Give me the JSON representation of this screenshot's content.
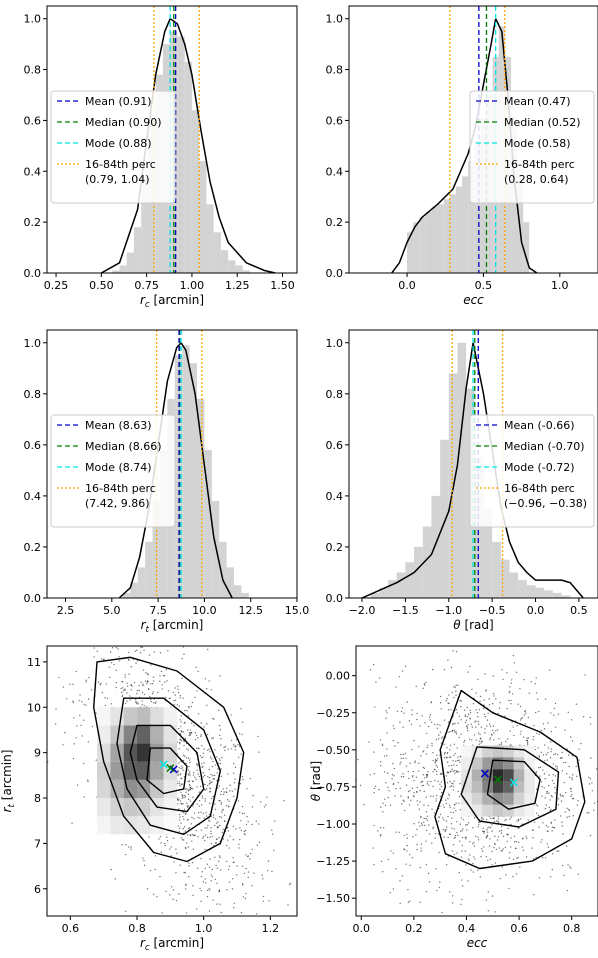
{
  "colors": {
    "mean": "#0000cc",
    "median": "#008000",
    "mode": "#00e5e5",
    "perc": "#ffa500",
    "hist": "#d3d3d3",
    "curve": "#000000"
  },
  "chart_data": [
    {
      "id": "rc_hist",
      "type": "bar",
      "xlabel": "r_c [arcmin]",
      "xlim": [
        0.2,
        1.58
      ],
      "ylim": [
        0,
        1.05
      ],
      "xticks": [
        "0.25",
        "0.50",
        "0.75",
        "1.00",
        "1.25",
        "1.50"
      ],
      "yticks": [
        "0.0",
        "0.2",
        "0.4",
        "0.6",
        "0.8",
        "1.0"
      ],
      "legend": "left",
      "lines": {
        "mean": 0.91,
        "median": 0.9,
        "mode": 0.88,
        "p16": 0.79,
        "p84": 1.04
      },
      "legend_labels": [
        "Mean (0.91)",
        "Median (0.90)",
        "Mode (0.88)",
        "16-84th perc",
        "(0.79, 1.04)"
      ],
      "hist": {
        "x0": 0.56,
        "dx": 0.04,
        "values": [
          0.01,
          0.03,
          0.08,
          0.18,
          0.38,
          0.6,
          0.78,
          0.9,
          0.95,
          0.93,
          0.83,
          0.64,
          0.44,
          0.27,
          0.16,
          0.09,
          0.05,
          0.03,
          0.01
        ]
      },
      "curve": {
        "x": [
          0.5,
          0.6,
          0.7,
          0.75,
          0.8,
          0.85,
          0.88,
          0.92,
          0.96,
          1.0,
          1.05,
          1.1,
          1.15,
          1.2,
          1.3,
          1.4,
          1.46
        ],
        "y": [
          0.0,
          0.04,
          0.25,
          0.52,
          0.78,
          0.95,
          1.0,
          0.98,
          0.9,
          0.78,
          0.56,
          0.36,
          0.22,
          0.12,
          0.04,
          0.01,
          0.0
        ]
      }
    },
    {
      "id": "ecc_hist",
      "type": "bar",
      "xlabel": "ecc",
      "xlim": [
        -0.38,
        1.25
      ],
      "ylim": [
        0,
        1.05
      ],
      "xticks": [
        "0.0",
        "0.5",
        "1.0"
      ],
      "yticks": [
        "0.0",
        "0.2",
        "0.4",
        "0.6",
        "0.8",
        "1.0"
      ],
      "legend": "right",
      "lines": {
        "mean": 0.47,
        "median": 0.52,
        "mode": 0.58,
        "p16": 0.28,
        "p84": 0.64
      },
      "legend_labels": [
        "Mean (0.47)",
        "Median (0.52)",
        "Mode (0.58)",
        "16-84th perc",
        "(0.28, 0.64)"
      ],
      "hist": {
        "x0": 0.0,
        "dx": 0.04,
        "values": [
          0.16,
          0.2,
          0.22,
          0.24,
          0.26,
          0.27,
          0.29,
          0.31,
          0.34,
          0.38,
          0.44,
          0.52,
          0.61,
          0.71,
          0.85,
          0.97,
          0.85,
          0.62,
          0.41,
          0.2
        ]
      },
      "curve": {
        "x": [
          -0.1,
          -0.05,
          0.0,
          0.05,
          0.1,
          0.2,
          0.3,
          0.4,
          0.45,
          0.5,
          0.55,
          0.58,
          0.62,
          0.66,
          0.7,
          0.75,
          0.8,
          0.85
        ],
        "y": [
          0.0,
          0.04,
          0.12,
          0.18,
          0.22,
          0.27,
          0.33,
          0.47,
          0.58,
          0.74,
          0.9,
          1.0,
          0.95,
          0.7,
          0.38,
          0.12,
          0.02,
          0.0
        ]
      }
    },
    {
      "id": "rt_hist",
      "type": "bar",
      "xlabel": "r_t [arcmin]",
      "xlim": [
        1.5,
        15.0
      ],
      "ylim": [
        0,
        1.05
      ],
      "xticks": [
        "2.5",
        "5.0",
        "7.5",
        "10.0",
        "12.5",
        "15.0"
      ],
      "yticks": [
        "0.0",
        "0.2",
        "0.4",
        "0.6",
        "0.8",
        "1.0"
      ],
      "legend": "left",
      "lines": {
        "mean": 8.63,
        "median": 8.66,
        "mode": 8.74,
        "p16": 7.42,
        "p84": 9.86
      },
      "legend_labels": [
        "Mean (8.63)",
        "Median (8.66)",
        "Mode (8.74)",
        "16-84th perc",
        "(7.42, 9.86)"
      ],
      "hist": {
        "x0": 5.6,
        "dx": 0.4,
        "values": [
          0.02,
          0.06,
          0.12,
          0.22,
          0.38,
          0.58,
          0.78,
          0.95,
          0.99,
          0.92,
          0.78,
          0.58,
          0.38,
          0.22,
          0.12,
          0.05,
          0.02
        ]
      },
      "curve": {
        "x": [
          5.4,
          6.0,
          6.5,
          7.0,
          7.5,
          8.0,
          8.5,
          8.74,
          9.0,
          9.5,
          10.0,
          10.5,
          11.0,
          11.5
        ],
        "y": [
          0.0,
          0.04,
          0.16,
          0.35,
          0.6,
          0.85,
          0.98,
          1.0,
          0.97,
          0.8,
          0.52,
          0.24,
          0.07,
          0.0
        ]
      }
    },
    {
      "id": "theta_hist",
      "type": "bar",
      "xlabel": "θ [rad]",
      "xlim": [
        -2.15,
        0.72
      ],
      "ylim": [
        0,
        1.05
      ],
      "xticks": [
        "-2.0",
        "-1.5",
        "-1.0",
        "-0.5",
        "0.0",
        "0.5"
      ],
      "yticks": [
        "0.0",
        "0.2",
        "0.4",
        "0.6",
        "0.8",
        "1.0"
      ],
      "legend": "right",
      "lines": {
        "mean": -0.66,
        "median": -0.7,
        "mode": -0.72,
        "p16": -0.96,
        "p84": -0.38
      },
      "legend_labels": [
        "Mean (-0.66)",
        "Median (-0.70)",
        "Mode (-0.72)",
        "16-84th perc",
        "(−0.96, −0.38)"
      ],
      "hist": {
        "x0": -1.9,
        "dx": 0.1,
        "values": [
          0.02,
          0.04,
          0.07,
          0.1,
          0.14,
          0.2,
          0.28,
          0.4,
          0.62,
          0.88,
          1.0,
          0.82,
          0.55,
          0.35,
          0.22,
          0.15,
          0.1,
          0.07,
          0.05,
          0.04,
          0.03,
          0.02,
          0.01
        ]
      },
      "curve": {
        "x": [
          -2.0,
          -1.8,
          -1.6,
          -1.4,
          -1.2,
          -1.0,
          -0.9,
          -0.8,
          -0.72,
          -0.6,
          -0.5,
          -0.4,
          -0.3,
          -0.2,
          -0.1,
          0.0,
          0.1,
          0.2,
          0.3,
          0.4,
          0.5,
          0.55
        ],
        "y": [
          0.0,
          0.03,
          0.06,
          0.1,
          0.17,
          0.34,
          0.52,
          0.82,
          1.0,
          0.8,
          0.58,
          0.36,
          0.22,
          0.14,
          0.1,
          0.07,
          0.07,
          0.07,
          0.07,
          0.06,
          0.02,
          0.0
        ]
      }
    },
    {
      "id": "rc_rt_2d",
      "type": "heatmap",
      "xlabel": "r_c [arcmin]",
      "ylabel": "r_t [arcmin]",
      "xlim": [
        0.53,
        1.28
      ],
      "ylim": [
        5.4,
        11.35
      ],
      "xticks": [
        "0.6",
        "0.8",
        "1.0",
        "1.2"
      ],
      "yticks": [
        "6",
        "7",
        "8",
        "9",
        "10",
        "11"
      ],
      "grid": {
        "x0": 0.68,
        "y0": 7.2,
        "dx": 0.04,
        "dy": 0.4
      },
      "cells": [
        [
          0.05,
          0.1,
          0.12,
          0.1,
          0.06,
          0.02
        ],
        [
          0.1,
          0.2,
          0.25,
          0.22,
          0.12,
          0.05
        ],
        [
          0.18,
          0.35,
          0.5,
          0.45,
          0.25,
          0.1
        ],
        [
          0.2,
          0.45,
          0.7,
          0.72,
          0.4,
          0.15
        ],
        [
          0.15,
          0.4,
          0.75,
          0.9,
          0.45,
          0.18
        ],
        [
          0.08,
          0.25,
          0.55,
          0.7,
          0.35,
          0.12
        ],
        [
          0.04,
          0.12,
          0.25,
          0.3,
          0.15,
          0.06
        ]
      ],
      "markers": [
        {
          "name": "mean",
          "x": 0.91,
          "y": 8.63
        },
        {
          "name": "median",
          "x": 0.9,
          "y": 8.66
        },
        {
          "name": "mode",
          "x": 0.88,
          "y": 8.74
        }
      ],
      "contours": [
        [
          [
            0.68,
            11.0
          ],
          [
            0.78,
            11.1
          ],
          [
            0.92,
            10.8
          ],
          [
            1.06,
            10.0
          ],
          [
            1.12,
            9.0
          ],
          [
            1.1,
            8.0
          ],
          [
            1.05,
            7.0
          ],
          [
            0.95,
            6.6
          ],
          [
            0.85,
            6.8
          ],
          [
            0.76,
            7.6
          ],
          [
            0.7,
            8.8
          ],
          [
            0.67,
            10.0
          ]
        ],
        [
          [
            0.76,
            10.2
          ],
          [
            0.88,
            10.2
          ],
          [
            1.0,
            9.5
          ],
          [
            1.05,
            8.6
          ],
          [
            1.02,
            7.6
          ],
          [
            0.94,
            7.2
          ],
          [
            0.84,
            7.4
          ],
          [
            0.77,
            8.2
          ],
          [
            0.74,
            9.2
          ]
        ],
        [
          [
            0.8,
            9.6
          ],
          [
            0.9,
            9.6
          ],
          [
            0.98,
            9.0
          ],
          [
            1.0,
            8.2
          ],
          [
            0.95,
            7.7
          ],
          [
            0.86,
            7.8
          ],
          [
            0.8,
            8.4
          ],
          [
            0.78,
            9.0
          ]
        ],
        [
          [
            0.84,
            9.1
          ],
          [
            0.9,
            9.1
          ],
          [
            0.95,
            8.7
          ],
          [
            0.94,
            8.2
          ],
          [
            0.88,
            8.1
          ],
          [
            0.83,
            8.4
          ]
        ]
      ]
    },
    {
      "id": "ecc_theta_2d",
      "type": "heatmap",
      "xlabel": "ecc",
      "ylabel": "θ [rad]",
      "xlim": [
        -0.02,
        0.9
      ],
      "ylim": [
        -1.62,
        0.2
      ],
      "xticks": [
        "0.0",
        "0.2",
        "0.4",
        "0.6",
        "0.8"
      ],
      "yticks": [
        "0.00",
        "-0.25",
        "-0.50",
        "-0.75",
        "-1.00",
        "-1.25",
        "-1.50"
      ],
      "grid": {
        "x0": 0.38,
        "y0": -0.95,
        "dx": 0.04,
        "dy": 0.08
      },
      "cells": [
        [
          0.05,
          0.1,
          0.18,
          0.25,
          0.2,
          0.1,
          0.05
        ],
        [
          0.1,
          0.2,
          0.35,
          0.5,
          0.45,
          0.2,
          0.08
        ],
        [
          0.15,
          0.3,
          0.55,
          0.85,
          0.7,
          0.3,
          0.1
        ],
        [
          0.12,
          0.35,
          0.6,
          0.95,
          0.8,
          0.35,
          0.1
        ],
        [
          0.08,
          0.25,
          0.45,
          0.6,
          0.5,
          0.25,
          0.06
        ],
        [
          0.04,
          0.1,
          0.2,
          0.25,
          0.2,
          0.1,
          0.04
        ]
      ],
      "markers": [
        {
          "name": "mean",
          "x": 0.47,
          "y": -0.66
        },
        {
          "name": "median",
          "x": 0.52,
          "y": -0.7
        },
        {
          "name": "mode",
          "x": 0.58,
          "y": -0.72
        }
      ],
      "contours": [
        [
          [
            0.38,
            -0.1
          ],
          [
            0.5,
            -0.25
          ],
          [
            0.68,
            -0.38
          ],
          [
            0.82,
            -0.55
          ],
          [
            0.85,
            -0.85
          ],
          [
            0.8,
            -1.1
          ],
          [
            0.65,
            -1.25
          ],
          [
            0.45,
            -1.3
          ],
          [
            0.32,
            -1.2
          ],
          [
            0.28,
            -0.95
          ],
          [
            0.32,
            -0.75
          ],
          [
            0.3,
            -0.5
          ]
        ],
        [
          [
            0.44,
            -0.48
          ],
          [
            0.62,
            -0.5
          ],
          [
            0.75,
            -0.65
          ],
          [
            0.74,
            -0.9
          ],
          [
            0.6,
            -1.02
          ],
          [
            0.45,
            -0.98
          ],
          [
            0.38,
            -0.8
          ]
        ],
        [
          [
            0.5,
            -0.57
          ],
          [
            0.62,
            -0.58
          ],
          [
            0.68,
            -0.7
          ],
          [
            0.66,
            -0.86
          ],
          [
            0.56,
            -0.9
          ],
          [
            0.48,
            -0.8
          ]
        ]
      ]
    }
  ]
}
